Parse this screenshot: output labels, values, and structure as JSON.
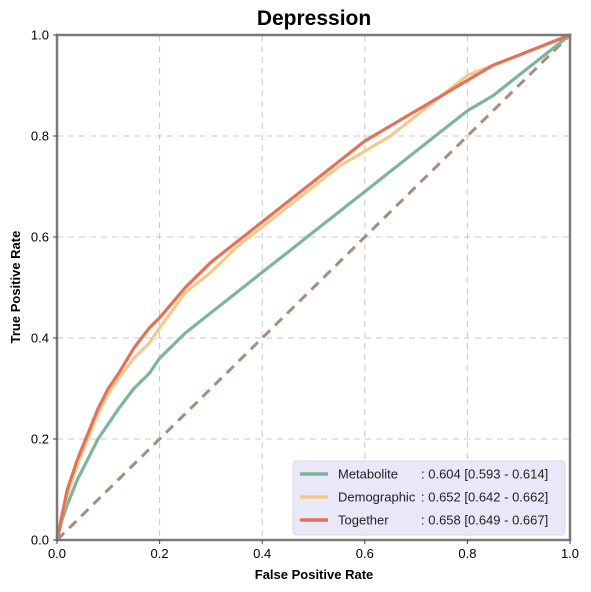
{
  "chart_data": {
    "type": "line",
    "title": "Depression",
    "xlabel": "False Positive Rate",
    "ylabel": "True Positive Rate",
    "xlim": [
      0,
      1
    ],
    "ylim": [
      0,
      1
    ],
    "xticks": [
      "0.0",
      "0.2",
      "0.4",
      "0.6",
      "0.8",
      "1.0"
    ],
    "yticks": [
      "0.0",
      "0.2",
      "0.4",
      "0.6",
      "0.8",
      "1.0"
    ],
    "grid": true,
    "legend_position": "lower-right",
    "diagonal": {
      "x": [
        0,
        1
      ],
      "y": [
        0,
        1
      ],
      "color": "#a88c7d"
    },
    "series": [
      {
        "name": "Metabolite",
        "legend_name": "Metabolite",
        "legend_value": ": 0.604 [0.593 - 0.614]",
        "color": "#7db596",
        "x": [
          0,
          0.01,
          0.02,
          0.04,
          0.06,
          0.08,
          0.1,
          0.12,
          0.15,
          0.18,
          0.2,
          0.25,
          0.3,
          0.35,
          0.4,
          0.45,
          0.5,
          0.55,
          0.6,
          0.65,
          0.7,
          0.75,
          0.8,
          0.85,
          0.9,
          0.95,
          1.0
        ],
        "y": [
          0,
          0.04,
          0.07,
          0.12,
          0.16,
          0.2,
          0.23,
          0.26,
          0.3,
          0.33,
          0.36,
          0.41,
          0.45,
          0.49,
          0.53,
          0.57,
          0.61,
          0.65,
          0.69,
          0.73,
          0.77,
          0.81,
          0.85,
          0.88,
          0.92,
          0.96,
          1.0
        ]
      },
      {
        "name": "Demographic",
        "legend_name": "Demographic",
        "legend_value": ": 0.652 [0.642 - 0.662]",
        "color": "#f5c88c",
        "x": [
          0,
          0.01,
          0.02,
          0.04,
          0.06,
          0.08,
          0.1,
          0.12,
          0.15,
          0.18,
          0.2,
          0.25,
          0.3,
          0.35,
          0.4,
          0.45,
          0.5,
          0.55,
          0.6,
          0.65,
          0.7,
          0.75,
          0.8,
          0.85,
          0.9,
          0.95,
          1.0
        ],
        "y": [
          0,
          0.05,
          0.09,
          0.15,
          0.2,
          0.25,
          0.29,
          0.32,
          0.36,
          0.39,
          0.42,
          0.49,
          0.53,
          0.58,
          0.62,
          0.66,
          0.7,
          0.74,
          0.77,
          0.8,
          0.84,
          0.88,
          0.92,
          0.94,
          0.96,
          0.98,
          1.0
        ]
      },
      {
        "name": "Together",
        "legend_name": "Together",
        "legend_value": ": 0.658 [0.649 - 0.667]",
        "color": "#e0735a",
        "x": [
          0,
          0.01,
          0.02,
          0.04,
          0.06,
          0.08,
          0.1,
          0.12,
          0.15,
          0.18,
          0.2,
          0.25,
          0.3,
          0.35,
          0.4,
          0.45,
          0.5,
          0.55,
          0.6,
          0.65,
          0.7,
          0.75,
          0.8,
          0.85,
          0.9,
          0.95,
          1.0
        ],
        "y": [
          0,
          0.05,
          0.1,
          0.16,
          0.21,
          0.26,
          0.3,
          0.33,
          0.38,
          0.42,
          0.44,
          0.5,
          0.55,
          0.59,
          0.63,
          0.67,
          0.71,
          0.75,
          0.79,
          0.82,
          0.85,
          0.88,
          0.91,
          0.94,
          0.96,
          0.98,
          1.0
        ]
      }
    ]
  }
}
